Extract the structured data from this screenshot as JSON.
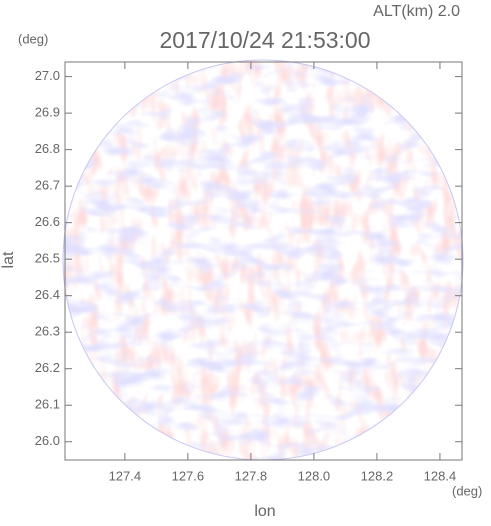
{
  "chart_data": {
    "type": "radar",
    "title": "2017/10/24 21:53:00",
    "altitude_label": "ALT(km) 2.0",
    "y_unit": "(deg)",
    "x_unit": "(deg)",
    "xlabel": "lon",
    "ylabel": "lat",
    "xlim": [
      127.21,
      128.47
    ],
    "ylim": [
      25.95,
      27.04
    ],
    "xticks": [
      127.4,
      127.6,
      127.8,
      {
        "value": 128.0,
        "label": "128.0"
      },
      128.2,
      128.4
    ],
    "yticks": [
      {
        "value": 26.0,
        "label": "26.0"
      },
      26.1,
      26.2,
      26.3,
      26.4,
      26.5,
      26.6,
      26.7,
      26.8,
      26.9,
      {
        "value": 27.0,
        "label": "27.0"
      }
    ]
  }
}
